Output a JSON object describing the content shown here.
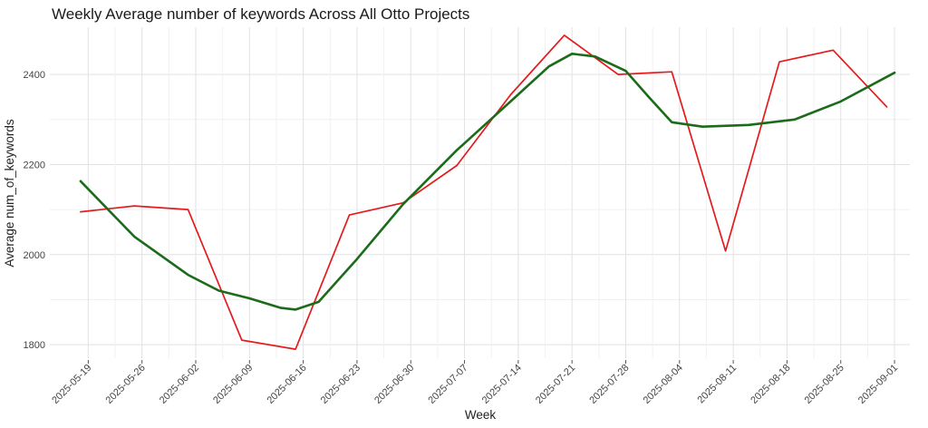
{
  "chart_data": {
    "type": "line",
    "title": "Weekly Average number of keywords Across All Otto Projects",
    "xlabel": "Week",
    "ylabel": "Average num_of_keywords",
    "x": [
      "2025-05-19",
      "2025-05-26",
      "2025-06-02",
      "2025-06-09",
      "2025-06-16",
      "2025-06-23",
      "2025-06-30",
      "2025-07-07",
      "2025-07-14",
      "2025-07-21",
      "2025-07-28",
      "2025-08-04",
      "2025-08-11",
      "2025-08-18",
      "2025-08-25",
      "2025-09-01"
    ],
    "x_start": "2025-05-19",
    "x_end": "2025-09-01",
    "xlim": [
      "2025-05-14",
      "2025-09-03"
    ],
    "ylim": [
      1770,
      2505
    ],
    "y_ticks": [
      1800,
      2000,
      2200,
      2400
    ],
    "grid": true,
    "legend": "none",
    "series": [
      {
        "color": "#e41a1c",
        "points": [
          [
            "2025-05-18",
            2095
          ],
          [
            "2025-05-25",
            2108
          ],
          [
            "2025-06-01",
            2100
          ],
          [
            "2025-06-08",
            1810
          ],
          [
            "2025-06-15",
            1790
          ],
          [
            "2025-06-22",
            2088
          ],
          [
            "2025-06-29",
            2115
          ],
          [
            "2025-07-06",
            2198
          ],
          [
            "2025-07-13",
            2355
          ],
          [
            "2025-07-20",
            2487
          ],
          [
            "2025-07-27",
            2400
          ],
          [
            "2025-08-03",
            2406
          ],
          [
            "2025-08-10",
            2008
          ],
          [
            "2025-08-17",
            2428
          ],
          [
            "2025-08-24",
            2454
          ],
          [
            "2025-08-31",
            2328
          ]
        ]
      },
      {
        "color": "#1b6b1b",
        "points": [
          [
            "2025-05-18",
            2163
          ],
          [
            "2025-05-25",
            2040
          ],
          [
            "2025-06-01",
            1955
          ],
          [
            "2025-06-05",
            1920
          ],
          [
            "2025-06-09",
            1903
          ],
          [
            "2025-06-13",
            1882
          ],
          [
            "2025-06-15",
            1878
          ],
          [
            "2025-06-18",
            1895
          ],
          [
            "2025-06-23",
            1990
          ],
          [
            "2025-06-29",
            2112
          ],
          [
            "2025-07-06",
            2232
          ],
          [
            "2025-07-13",
            2340
          ],
          [
            "2025-07-18",
            2418
          ],
          [
            "2025-07-21",
            2446
          ],
          [
            "2025-07-24",
            2440
          ],
          [
            "2025-07-28",
            2408
          ],
          [
            "2025-07-31",
            2350
          ],
          [
            "2025-08-03",
            2294
          ],
          [
            "2025-08-07",
            2284
          ],
          [
            "2025-08-13",
            2288
          ],
          [
            "2025-08-19",
            2300
          ],
          [
            "2025-08-25",
            2340
          ],
          [
            "2025-09-01",
            2404
          ]
        ]
      }
    ]
  }
}
